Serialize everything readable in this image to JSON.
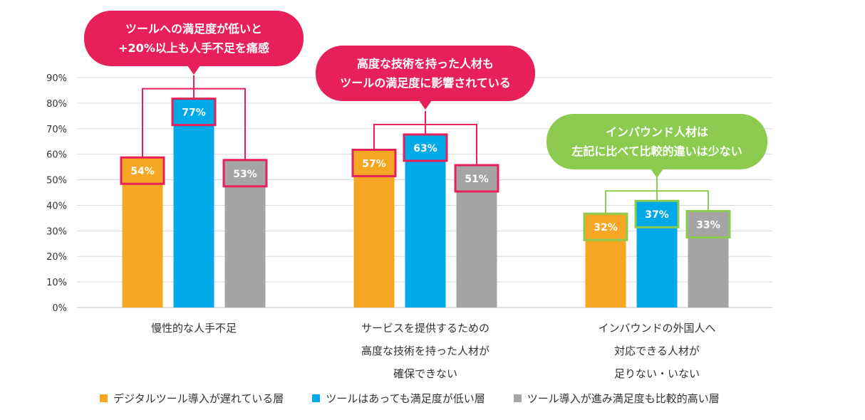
{
  "colors": {
    "digital_late": "#F5A623",
    "low_satisfaction": "#00A9E8",
    "progressed": "#A5A5A5",
    "callout_pink": "#E8205A",
    "callout_green": "#8CCB50",
    "grid": "#D9D9D9",
    "text": "#333333"
  },
  "chart_data": {
    "type": "bar",
    "ylim": [
      0,
      90
    ],
    "yticks": [
      "0%",
      "10%",
      "20%",
      "30%",
      "40%",
      "50%",
      "60%",
      "70%",
      "80%",
      "90%"
    ],
    "grid": true,
    "legend_position": "bottom",
    "categories": [
      [
        "慢性的な人手不足"
      ],
      [
        "サービスを提供するための",
        "高度な技術を持った人材が",
        "確保できない"
      ],
      [
        "インバウンドの外国人へ",
        "対応できる人材が",
        "足りない・いない"
      ]
    ],
    "series": [
      {
        "name": "デジタルツール導入が遅れている層",
        "values": [
          54,
          57,
          32
        ],
        "labels": [
          "54%",
          "57%",
          "32%"
        ]
      },
      {
        "name": "ツールはあっても満足度が低い層",
        "values": [
          77,
          63,
          37
        ],
        "labels": [
          "77%",
          "63%",
          "37%"
        ]
      },
      {
        "name": "ツール導入が進み満足度も比較的高い層",
        "values": [
          53,
          51,
          33
        ],
        "labels": [
          "53%",
          "51%",
          "33%"
        ]
      }
    ],
    "annotations": [
      {
        "lines": [
          "ツールへの満足度が低いと",
          "+20%以上も人手不足を痛感"
        ],
        "color": "pink",
        "category": 0
      },
      {
        "lines": [
          "高度な技術を持った人材も",
          "ツールの満足度に影響されている"
        ],
        "color": "pink",
        "category": 1
      },
      {
        "lines": [
          "インバウンド人材は",
          "左記に比べて比較的違いは少ない"
        ],
        "color": "green",
        "category": 2
      }
    ]
  }
}
